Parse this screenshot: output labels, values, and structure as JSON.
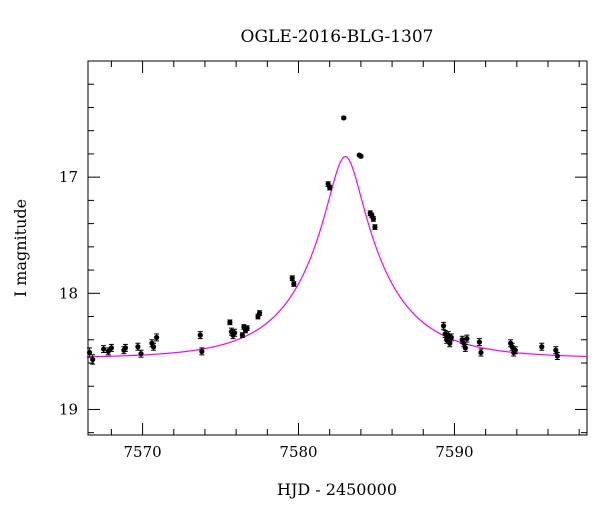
{
  "chart_data": {
    "type": "scatter",
    "title": "OGLE-2016-BLG-1307",
    "xlabel": "HJD - 2450000",
    "ylabel": "I magnitude",
    "xlim": [
      7566.5,
      7598.5
    ],
    "ylim": [
      19.22,
      16.0
    ],
    "y_inverted": true,
    "grid": false,
    "x_ticks": [
      7570,
      7580,
      7590
    ],
    "y_ticks": [
      17,
      18,
      19
    ],
    "x_tick_labels": [
      "7570",
      "7580",
      "7590"
    ],
    "y_tick_labels": [
      "17",
      "18",
      "19"
    ],
    "model_color": "#ff00ff",
    "point_color": "#000000",
    "model": {
      "type": "microlensing_fit",
      "t0": 7583.0,
      "tE": 5.0,
      "u0": 0.205,
      "baseline_mag": 18.56
    },
    "series": [
      {
        "x": [
          7566.6,
          7566.8,
          7567.5,
          7567.8,
          7568.0,
          7568.8,
          7568.9,
          7569.7,
          7569.9,
          7570.6,
          7570.7,
          7570.9,
          7573.7,
          7573.8,
          7575.6,
          7575.7,
          7575.8,
          7575.9,
          7576.4,
          7576.5,
          7576.6,
          7576.7,
          7577.4,
          7577.5,
          7579.6,
          7579.7,
          7581.9,
          7582.0,
          7582.9,
          7583.9,
          7584.0,
          7584.6,
          7584.7,
          7584.8,
          7584.9,
          7589.3,
          7589.4,
          7589.5,
          7589.6,
          7589.7,
          7589.8,
          7590.5,
          7590.6,
          7590.7,
          7590.8,
          7591.6,
          7591.7,
          7593.6,
          7593.7,
          7593.8,
          7593.9,
          7595.6,
          7596.5,
          7596.6
        ],
        "y": [
          18.51,
          18.57,
          18.48,
          18.5,
          18.47,
          18.49,
          18.47,
          18.46,
          18.52,
          18.43,
          18.46,
          18.38,
          18.36,
          18.5,
          18.25,
          18.33,
          18.36,
          18.34,
          18.36,
          18.29,
          18.32,
          18.3,
          18.2,
          18.17,
          17.87,
          17.92,
          17.06,
          17.09,
          16.49,
          16.81,
          16.82,
          17.31,
          17.33,
          17.36,
          17.43,
          18.28,
          18.35,
          18.4,
          18.36,
          18.43,
          18.38,
          18.4,
          18.43,
          18.47,
          18.39,
          18.42,
          18.51,
          18.43,
          18.46,
          18.51,
          18.49,
          18.46,
          18.49,
          18.54
        ],
        "err": [
          0.04,
          0.04,
          0.03,
          0.03,
          0.03,
          0.03,
          0.03,
          0.03,
          0.03,
          0.03,
          0.03,
          0.03,
          0.03,
          0.03,
          0.02,
          0.03,
          0.03,
          0.03,
          0.02,
          0.02,
          0.02,
          0.02,
          0.02,
          0.02,
          0.02,
          0.02,
          0.02,
          0.02,
          0.01,
          0.01,
          0.01,
          0.02,
          0.02,
          0.02,
          0.02,
          0.03,
          0.03,
          0.03,
          0.03,
          0.03,
          0.03,
          0.03,
          0.03,
          0.03,
          0.03,
          0.03,
          0.03,
          0.03,
          0.03,
          0.03,
          0.03,
          0.03,
          0.03,
          0.03
        ]
      }
    ]
  }
}
